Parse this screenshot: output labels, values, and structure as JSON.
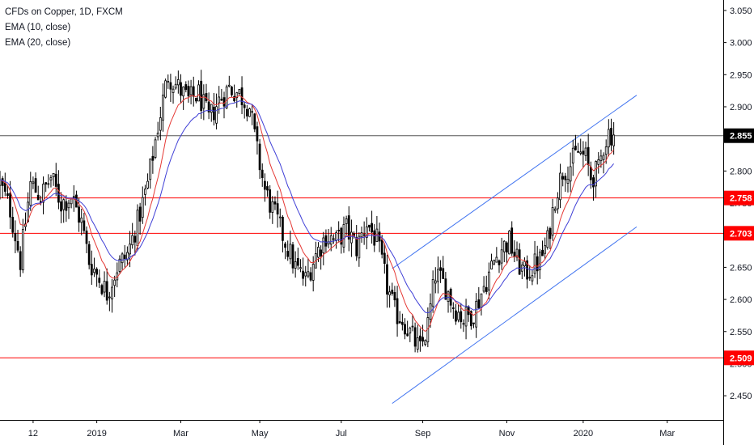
{
  "legend": {
    "title": "CFDs on Copper, 1D, FXCM",
    "ema10": "EMA (10, close)",
    "ema20": "EMA (20, close)"
  },
  "colors": {
    "candle_up": "#ffffff",
    "candle_down": "#000000",
    "candle_outline": "#000000",
    "ema10": "#e53935",
    "ema20": "#3f3fd6",
    "level_line": "#ff0000",
    "channel_line": "#3f73f0",
    "price_line": "#555555",
    "axis_line": "#000000"
  },
  "chart_data": {
    "type": "candlestick",
    "symbol": "CFDs on Copper",
    "timeframe": "1D",
    "source": "FXCM",
    "y_range": [
      2.43,
      3.06
    ],
    "y_ticks": [
      "3.050",
      "3.000",
      "2.950",
      "2.900",
      "2.850",
      "2.800",
      "2.750",
      "2.700",
      "2.650",
      "2.600",
      "2.550",
      "2.500",
      "2.450"
    ],
    "x_range_bars": [
      0,
      284
    ],
    "x_ticks": [
      {
        "label": "12",
        "bar": 13
      },
      {
        "label": "2019",
        "bar": 38
      },
      {
        "label": "Mar",
        "bar": 71
      },
      {
        "label": "May",
        "bar": 102
      },
      {
        "label": "Jul",
        "bar": 134
      },
      {
        "label": "Sep",
        "bar": 166
      },
      {
        "label": "Nov",
        "bar": 199
      },
      {
        "label": "2020",
        "bar": 229
      },
      {
        "label": "Mar",
        "bar": 262
      }
    ],
    "current_price": "2.855",
    "horizontal_levels": [
      {
        "value": 2.758,
        "label": "2.758"
      },
      {
        "value": 2.703,
        "label": "2.703"
      },
      {
        "value": 2.509,
        "label": "2.509"
      }
    ],
    "channel": {
      "upper": {
        "start": [
          154,
          2.648
        ],
        "end": [
          250,
          2.918
        ]
      },
      "lower": {
        "start": [
          154,
          2.438
        ],
        "end": [
          250,
          2.713
        ]
      }
    },
    "anchors": [
      [
        0,
        2.78
      ],
      [
        4,
        2.74
      ],
      [
        8,
        2.66
      ],
      [
        12,
        2.78
      ],
      [
        16,
        2.76
      ],
      [
        20,
        2.79
      ],
      [
        24,
        2.75
      ],
      [
        28,
        2.76
      ],
      [
        32,
        2.72
      ],
      [
        35,
        2.66
      ],
      [
        38,
        2.64
      ],
      [
        42,
        2.61
      ],
      [
        46,
        2.65
      ],
      [
        50,
        2.67
      ],
      [
        54,
        2.72
      ],
      [
        58,
        2.78
      ],
      [
        62,
        2.87
      ],
      [
        66,
        2.95
      ],
      [
        70,
        2.93
      ],
      [
        74,
        2.91
      ],
      [
        78,
        2.92
      ],
      [
        82,
        2.88
      ],
      [
        86,
        2.91
      ],
      [
        90,
        2.93
      ],
      [
        94,
        2.92
      ],
      [
        98,
        2.9
      ],
      [
        101,
        2.83
      ],
      [
        104,
        2.77
      ],
      [
        108,
        2.73
      ],
      [
        112,
        2.69
      ],
      [
        116,
        2.65
      ],
      [
        120,
        2.63
      ],
      [
        124,
        2.67
      ],
      [
        128,
        2.7
      ],
      [
        132,
        2.69
      ],
      [
        136,
        2.71
      ],
      [
        140,
        2.68
      ],
      [
        144,
        2.72
      ],
      [
        148,
        2.69
      ],
      [
        152,
        2.62
      ],
      [
        155,
        2.58
      ],
      [
        158,
        2.57
      ],
      [
        162,
        2.54
      ],
      [
        165,
        2.52
      ],
      [
        168,
        2.56
      ],
      [
        171,
        2.64
      ],
      [
        175,
        2.62
      ],
      [
        178,
        2.59
      ],
      [
        182,
        2.57
      ],
      [
        186,
        2.58
      ],
      [
        190,
        2.62
      ],
      [
        194,
        2.66
      ],
      [
        197,
        2.68
      ],
      [
        200,
        2.69
      ],
      [
        203,
        2.66
      ],
      [
        206,
        2.64
      ],
      [
        209,
        2.65
      ],
      [
        212,
        2.66
      ],
      [
        215,
        2.69
      ],
      [
        218,
        2.76
      ],
      [
        221,
        2.8
      ],
      [
        224,
        2.81
      ],
      [
        227,
        2.83
      ],
      [
        230,
        2.82
      ],
      [
        232,
        2.79
      ],
      [
        235,
        2.8
      ],
      [
        237,
        2.84
      ],
      [
        239,
        2.86
      ],
      [
        241,
        2.856
      ]
    ]
  }
}
